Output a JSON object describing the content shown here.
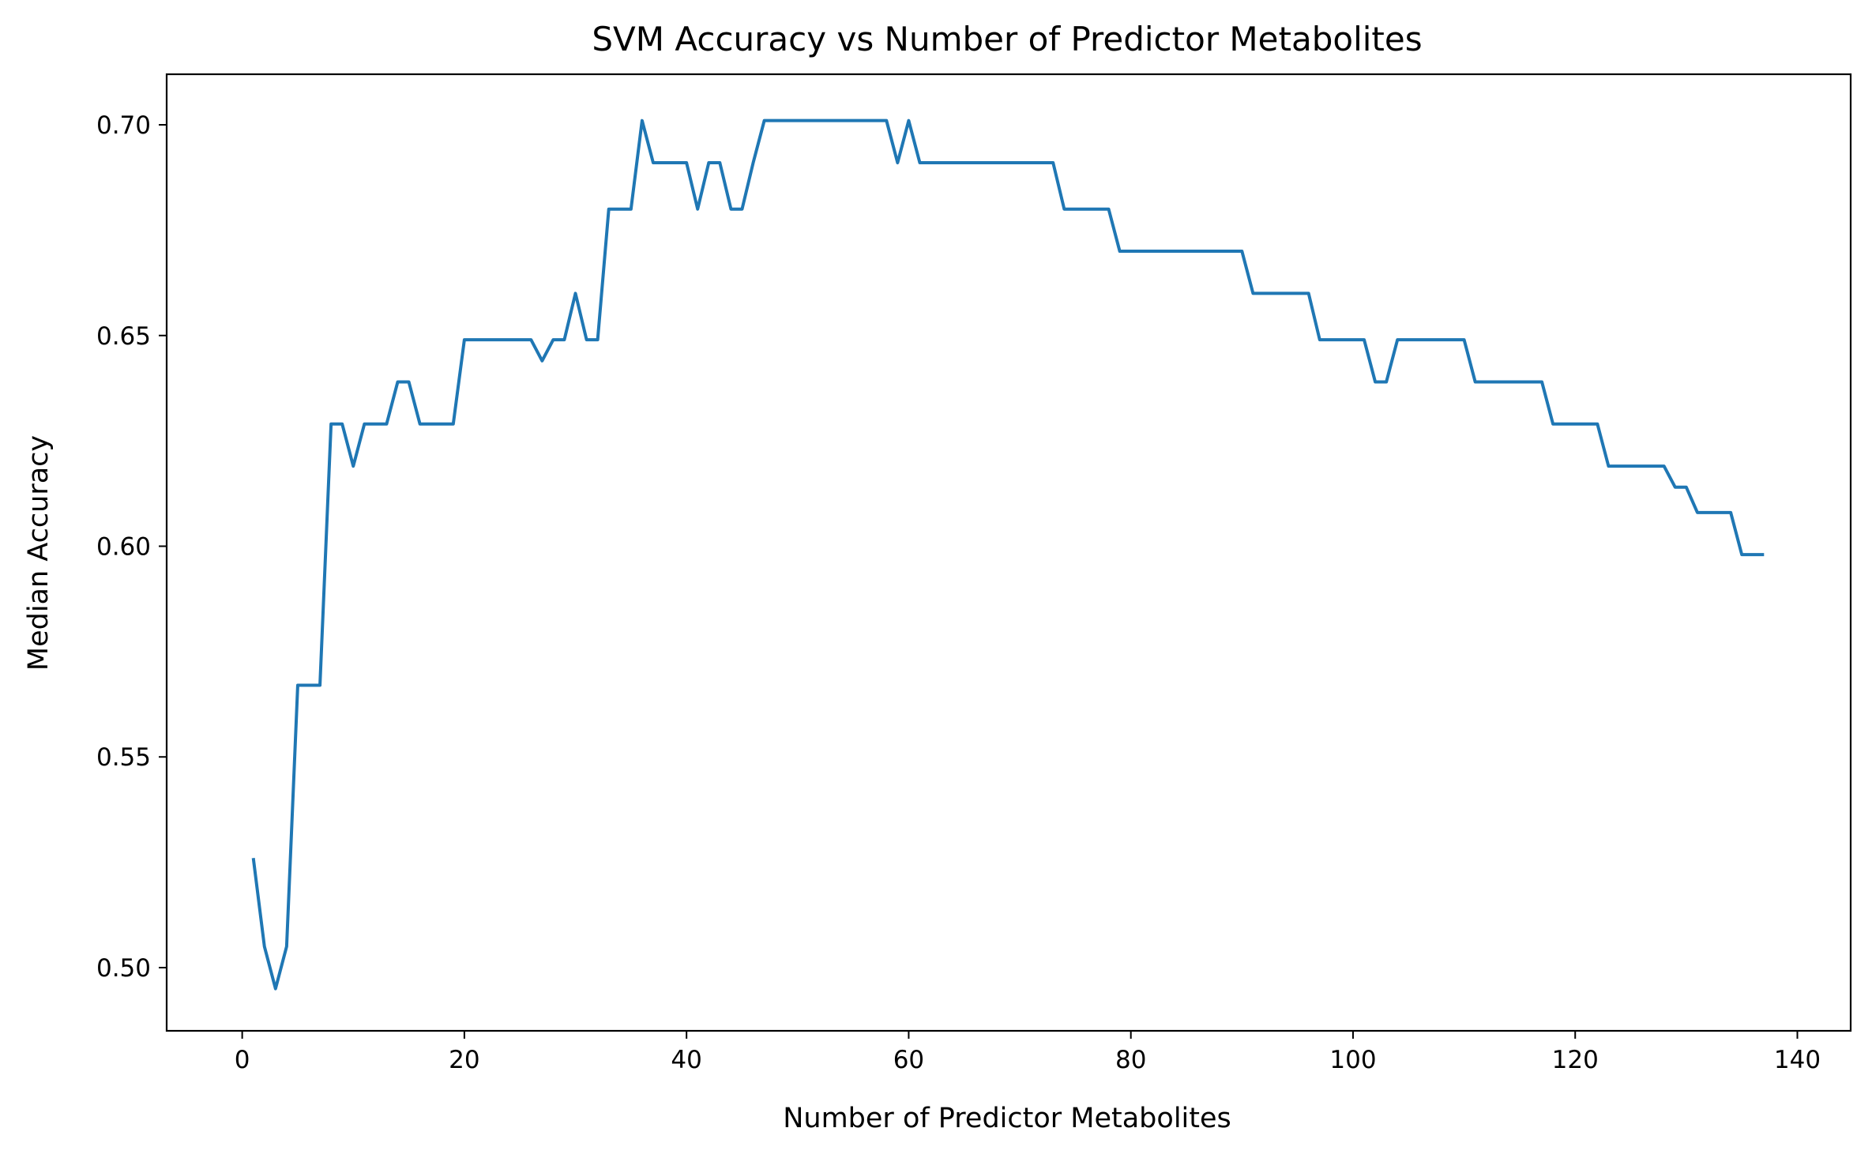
{
  "chart_data": {
    "type": "line",
    "title": "SVM Accuracy vs Number of Predictor Metabolites",
    "xlabel": "Number of Predictor Metabolites",
    "ylabel": "Median Accuracy",
    "xlim": [
      -6.8,
      144.8
    ],
    "ylim": [
      0.485,
      0.712
    ],
    "xticks": [
      0,
      20,
      40,
      60,
      80,
      100,
      120,
      140
    ],
    "xtick_labels": [
      "0",
      "20",
      "40",
      "60",
      "80",
      "100",
      "120",
      "140"
    ],
    "yticks": [
      0.5,
      0.55,
      0.6,
      0.65,
      0.7
    ],
    "ytick_labels": [
      "0.50",
      "0.55",
      "0.60",
      "0.65",
      "0.70"
    ],
    "grid": false,
    "colors": {
      "line": "#1f77b4",
      "axes": "#000000",
      "background": "#ffffff"
    },
    "series": [
      {
        "x": [
          1,
          2,
          3,
          4,
          5,
          6,
          7,
          8,
          9,
          10,
          11,
          12,
          13,
          14,
          15,
          16,
          17,
          18,
          19,
          20,
          21,
          22,
          23,
          24,
          25,
          26,
          27,
          28,
          29,
          30,
          31,
          32,
          33,
          34,
          35,
          36,
          37,
          38,
          39,
          40,
          41,
          42,
          43,
          44,
          45,
          46,
          47,
          48,
          49,
          50,
          51,
          52,
          53,
          54,
          55,
          56,
          57,
          58,
          59,
          60,
          61,
          62,
          63,
          64,
          65,
          66,
          67,
          68,
          69,
          70,
          71,
          72,
          73,
          74,
          75,
          76,
          77,
          78,
          79,
          80,
          81,
          82,
          83,
          84,
          85,
          86,
          87,
          88,
          89,
          90,
          91,
          92,
          93,
          94,
          95,
          96,
          97,
          98,
          99,
          100,
          101,
          102,
          103,
          104,
          105,
          106,
          107,
          108,
          109,
          110,
          111,
          112,
          113,
          114,
          115,
          116,
          117,
          118,
          119,
          120,
          121,
          122,
          123,
          124,
          125,
          126,
          127,
          128,
          129,
          130,
          131,
          132,
          133,
          134,
          135,
          136,
          137
        ],
        "values": [
          0.526,
          0.505,
          0.495,
          0.505,
          0.567,
          0.567,
          0.567,
          0.629,
          0.629,
          0.619,
          0.629,
          0.629,
          0.629,
          0.639,
          0.639,
          0.629,
          0.629,
          0.629,
          0.629,
          0.649,
          0.649,
          0.649,
          0.649,
          0.649,
          0.649,
          0.649,
          0.644,
          0.649,
          0.649,
          0.66,
          0.649,
          0.649,
          0.68,
          0.68,
          0.68,
          0.701,
          0.691,
          0.691,
          0.691,
          0.691,
          0.68,
          0.691,
          0.691,
          0.68,
          0.68,
          0.691,
          0.701,
          0.701,
          0.701,
          0.701,
          0.701,
          0.701,
          0.701,
          0.701,
          0.701,
          0.701,
          0.701,
          0.701,
          0.691,
          0.701,
          0.691,
          0.691,
          0.691,
          0.691,
          0.691,
          0.691,
          0.691,
          0.691,
          0.691,
          0.691,
          0.691,
          0.691,
          0.691,
          0.68,
          0.68,
          0.68,
          0.68,
          0.68,
          0.67,
          0.67,
          0.67,
          0.67,
          0.67,
          0.67,
          0.67,
          0.67,
          0.67,
          0.67,
          0.67,
          0.67,
          0.66,
          0.66,
          0.66,
          0.66,
          0.66,
          0.66,
          0.649,
          0.649,
          0.649,
          0.649,
          0.649,
          0.639,
          0.639,
          0.649,
          0.649,
          0.649,
          0.649,
          0.649,
          0.649,
          0.649,
          0.639,
          0.639,
          0.639,
          0.639,
          0.639,
          0.639,
          0.639,
          0.629,
          0.629,
          0.629,
          0.629,
          0.629,
          0.619,
          0.619,
          0.619,
          0.619,
          0.619,
          0.619,
          0.614,
          0.614,
          0.608,
          0.608,
          0.608,
          0.608,
          0.598,
          0.598,
          0.598
        ]
      }
    ]
  }
}
